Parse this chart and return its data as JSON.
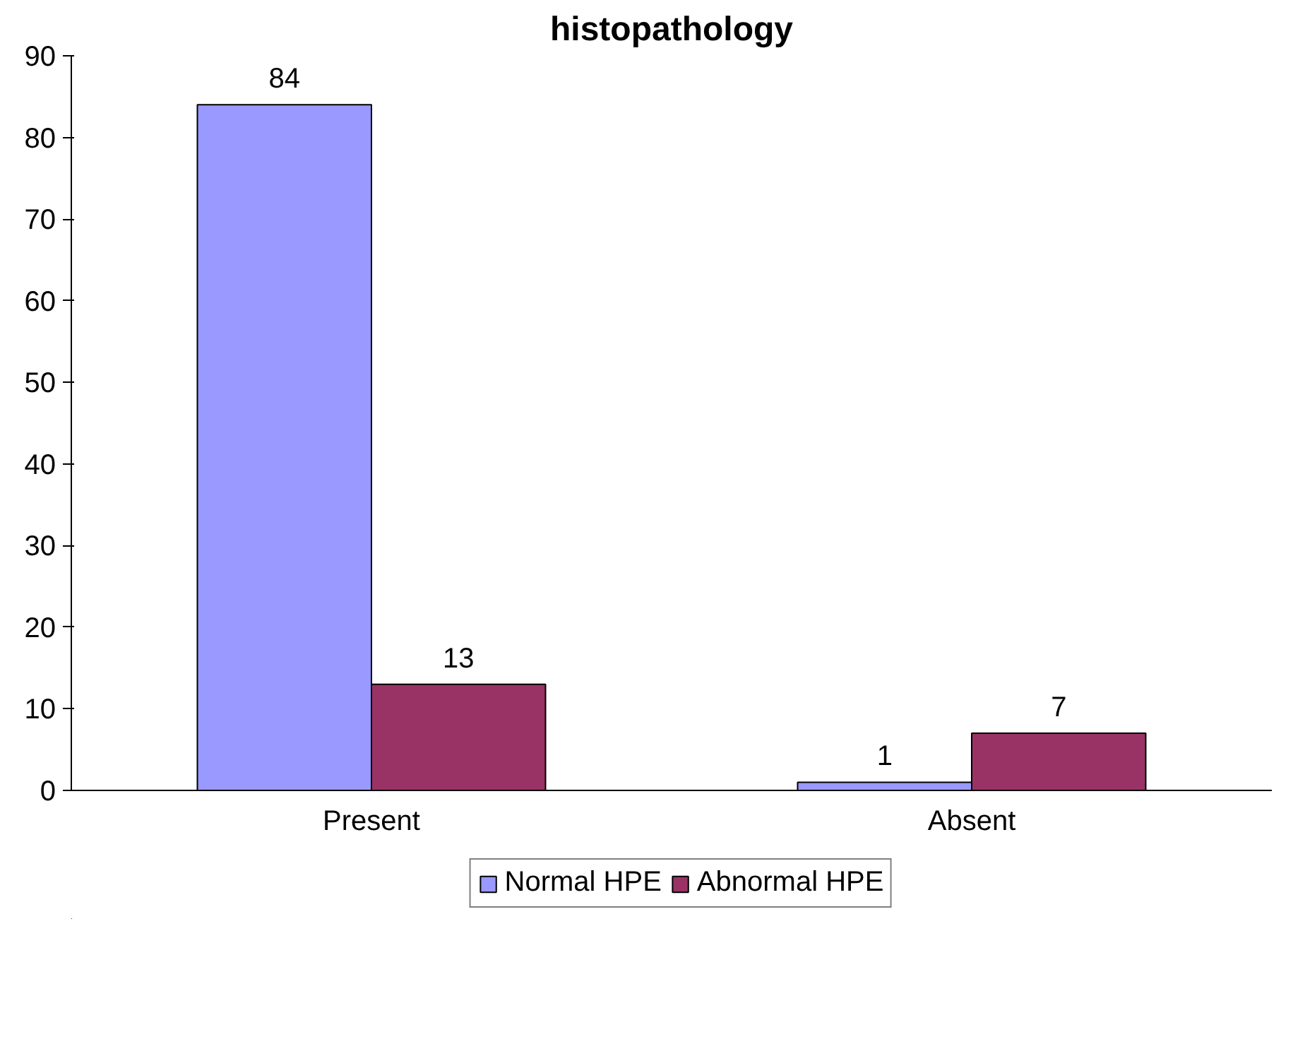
{
  "chart_data": {
    "type": "bar",
    "title": "histopathology",
    "categories": [
      "Present",
      "Absent"
    ],
    "series": [
      {
        "name": "Normal HPE",
        "color": "#9999ff",
        "values": [
          84,
          1
        ]
      },
      {
        "name": "Abnormal HPE",
        "color": "#993366",
        "values": [
          13,
          7
        ]
      }
    ],
    "ylim": [
      0,
      90
    ],
    "yticks": [
      0,
      10,
      20,
      30,
      40,
      50,
      60,
      70,
      80,
      90
    ],
    "grid": false,
    "legend": "bottom",
    "data_labels": true
  }
}
